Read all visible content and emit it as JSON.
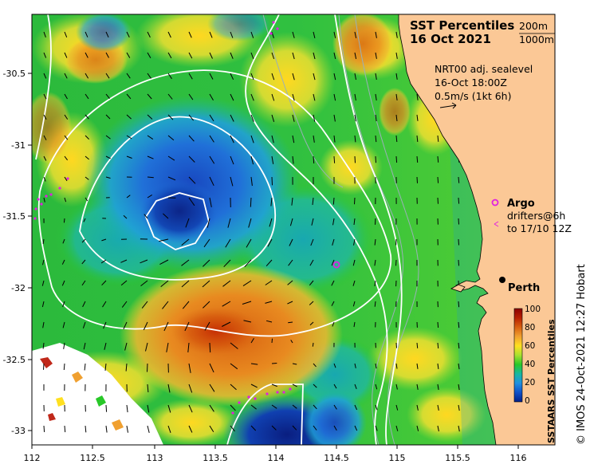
{
  "title_line1": "SST Percentiles",
  "title_line2": "16 Oct 2021",
  "depth_legend": {
    "line1": "200m",
    "line2": "1000m"
  },
  "currents": {
    "line1": "NRT00 adj. sealevel",
    "line2": "16-Oct 18:00Z",
    "line3": "0.5m/s (1kt 6h)"
  },
  "argo_label": "Argo",
  "drifters": {
    "line1": "drifters@6h",
    "line2": "to 17/10 12Z"
  },
  "city_label": "Perth",
  "colorbar": {
    "title": "SSTAARS SST Percentiles",
    "ticks": [
      "100",
      "80",
      "60",
      "40",
      "20",
      "0"
    ],
    "colors": [
      "#8b0000",
      "#c85a00",
      "#f0a030",
      "#ffe020",
      "#a8e030",
      "#28c828",
      "#18b8a0",
      "#2090e0",
      "#1050c8",
      "#00208a"
    ]
  },
  "x_ticks": [
    "112",
    "112.5",
    "113",
    "113.5",
    "114",
    "114.5",
    "115",
    "115.5",
    "116"
  ],
  "y_ticks": [
    "-30.5",
    "-31",
    "-31.5",
    "-32",
    "-32.5",
    "-33"
  ],
  "credit": "© IMOS 24-Oct-2021 12:27 Hobart",
  "colors": {
    "land": "#fbc896",
    "contour": "#ffffff",
    "argo": "#e020e0",
    "bathymetry": "#9ab0b8"
  }
}
